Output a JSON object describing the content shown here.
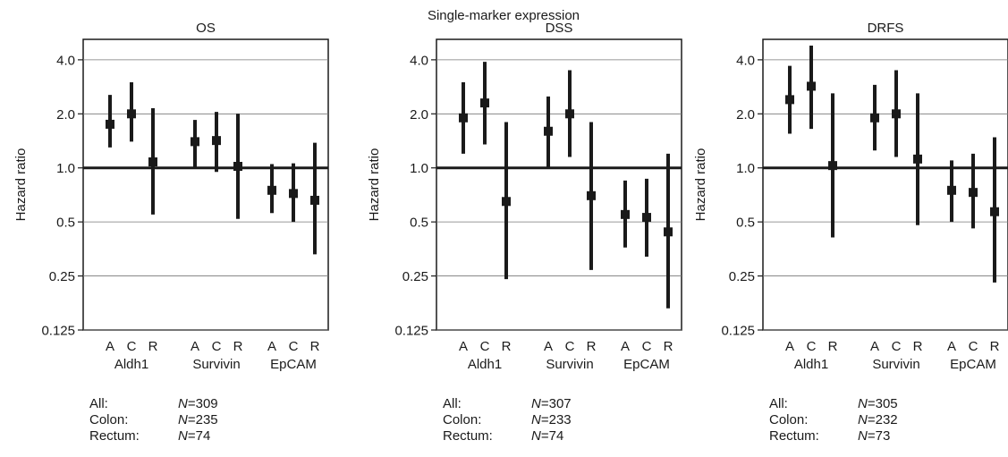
{
  "figure": {
    "suptitle": "Single-marker expression"
  },
  "chart_data": [
    {
      "type": "errorbar",
      "title": "OS",
      "ylabel": "Hazard ratio",
      "yscale": "log2",
      "ylim": [
        0.125,
        5.2
      ],
      "yticks": [
        0.125,
        0.25,
        0.5,
        1.0,
        2.0,
        4.0
      ],
      "ytick_labels": [
        "0.125",
        "0.25",
        "0.5",
        "1.0",
        "2.0",
        "4.0"
      ],
      "reference_line": 1.0,
      "grid": "horizontal",
      "groups": [
        {
          "name": "Aldh1",
          "points": [
            {
              "label": "A",
              "hr": 1.75,
              "lo": 1.3,
              "hi": 2.55
            },
            {
              "label": "C",
              "hr": 2.0,
              "lo": 1.4,
              "hi": 3.0
            },
            {
              "label": "R",
              "hr": 1.08,
              "lo": 0.55,
              "hi": 2.15
            }
          ]
        },
        {
          "name": "Survivin",
          "points": [
            {
              "label": "A",
              "hr": 1.4,
              "lo": 1.0,
              "hi": 1.85
            },
            {
              "label": "C",
              "hr": 1.42,
              "lo": 0.95,
              "hi": 2.05
            },
            {
              "label": "R",
              "hr": 1.02,
              "lo": 0.52,
              "hi": 2.0
            }
          ]
        },
        {
          "name": "EpCAM",
          "points": [
            {
              "label": "A",
              "hr": 0.75,
              "lo": 0.56,
              "hi": 1.05
            },
            {
              "label": "C",
              "hr": 0.72,
              "lo": 0.5,
              "hi": 1.06
            },
            {
              "label": "R",
              "hr": 0.66,
              "lo": 0.33,
              "hi": 1.38
            }
          ]
        }
      ],
      "counts": [
        {
          "label": "All:",
          "n_prefix": "N",
          "n_value": "=309"
        },
        {
          "label": "Colon:",
          "n_prefix": "N",
          "n_value": "=235"
        },
        {
          "label": "Rectum:",
          "n_prefix": "N",
          "n_value": "=74"
        }
      ]
    },
    {
      "type": "errorbar",
      "title": "DSS",
      "ylabel": "Hazard ratio",
      "yscale": "log2",
      "ylim": [
        0.125,
        5.2
      ],
      "yticks": [
        0.125,
        0.25,
        0.5,
        1.0,
        2.0,
        4.0
      ],
      "ytick_labels": [
        "0.125",
        "0.25",
        "0.5",
        "1.0",
        "2.0",
        "4.0"
      ],
      "reference_line": 1.0,
      "grid": "horizontal",
      "groups": [
        {
          "name": "Aldh1",
          "points": [
            {
              "label": "A",
              "hr": 1.9,
              "lo": 1.2,
              "hi": 3.0
            },
            {
              "label": "C",
              "hr": 2.3,
              "lo": 1.35,
              "hi": 3.9
            },
            {
              "label": "R",
              "hr": 0.65,
              "lo": 0.24,
              "hi": 1.8
            }
          ]
        },
        {
          "name": "Survivin",
          "points": [
            {
              "label": "A",
              "hr": 1.6,
              "lo": 1.0,
              "hi": 2.5
            },
            {
              "label": "C",
              "hr": 2.0,
              "lo": 1.15,
              "hi": 3.5
            },
            {
              "label": "R",
              "hr": 0.7,
              "lo": 0.27,
              "hi": 1.8
            }
          ]
        },
        {
          "name": "EpCAM",
          "points": [
            {
              "label": "A",
              "hr": 0.55,
              "lo": 0.36,
              "hi": 0.85
            },
            {
              "label": "C",
              "hr": 0.53,
              "lo": 0.32,
              "hi": 0.87
            },
            {
              "label": "R",
              "hr": 0.44,
              "lo": 0.165,
              "hi": 1.2
            }
          ]
        }
      ],
      "counts": [
        {
          "label": "All:",
          "n_prefix": "N",
          "n_value": "=307"
        },
        {
          "label": "Colon:",
          "n_prefix": "N",
          "n_value": "=233"
        },
        {
          "label": "Rectum:",
          "n_prefix": "N",
          "n_value": "=74"
        }
      ]
    },
    {
      "type": "errorbar",
      "title": "DRFS",
      "ylabel": "Hazard ratio",
      "yscale": "log2",
      "ylim": [
        0.125,
        5.2
      ],
      "yticks": [
        0.125,
        0.25,
        0.5,
        1.0,
        2.0,
        4.0
      ],
      "ytick_labels": [
        "0.125",
        "0.25",
        "0.5",
        "1.0",
        "2.0",
        "4.0"
      ],
      "reference_line": 1.0,
      "grid": "horizontal",
      "groups": [
        {
          "name": "Aldh1",
          "points": [
            {
              "label": "A",
              "hr": 2.4,
              "lo": 1.55,
              "hi": 3.7
            },
            {
              "label": "C",
              "hr": 2.85,
              "lo": 1.65,
              "hi": 4.8
            },
            {
              "label": "R",
              "hr": 1.03,
              "lo": 0.41,
              "hi": 2.6
            }
          ]
        },
        {
          "name": "Survivin",
          "points": [
            {
              "label": "A",
              "hr": 1.9,
              "lo": 1.25,
              "hi": 2.9
            },
            {
              "label": "C",
              "hr": 2.0,
              "lo": 1.15,
              "hi": 3.5
            },
            {
              "label": "R",
              "hr": 1.12,
              "lo": 0.48,
              "hi": 2.6
            }
          ]
        },
        {
          "name": "EpCAM",
          "points": [
            {
              "label": "A",
              "hr": 0.75,
              "lo": 0.5,
              "hi": 1.1
            },
            {
              "label": "C",
              "hr": 0.73,
              "lo": 0.46,
              "hi": 1.2
            },
            {
              "label": "R",
              "hr": 0.57,
              "lo": 0.23,
              "hi": 1.48
            }
          ]
        }
      ],
      "counts": [
        {
          "label": "All:",
          "n_prefix": "N",
          "n_value": "=305"
        },
        {
          "label": "Colon:",
          "n_prefix": "N",
          "n_value": "=232"
        },
        {
          "label": "Rectum:",
          "n_prefix": "N",
          "n_value": "=73"
        }
      ]
    }
  ]
}
